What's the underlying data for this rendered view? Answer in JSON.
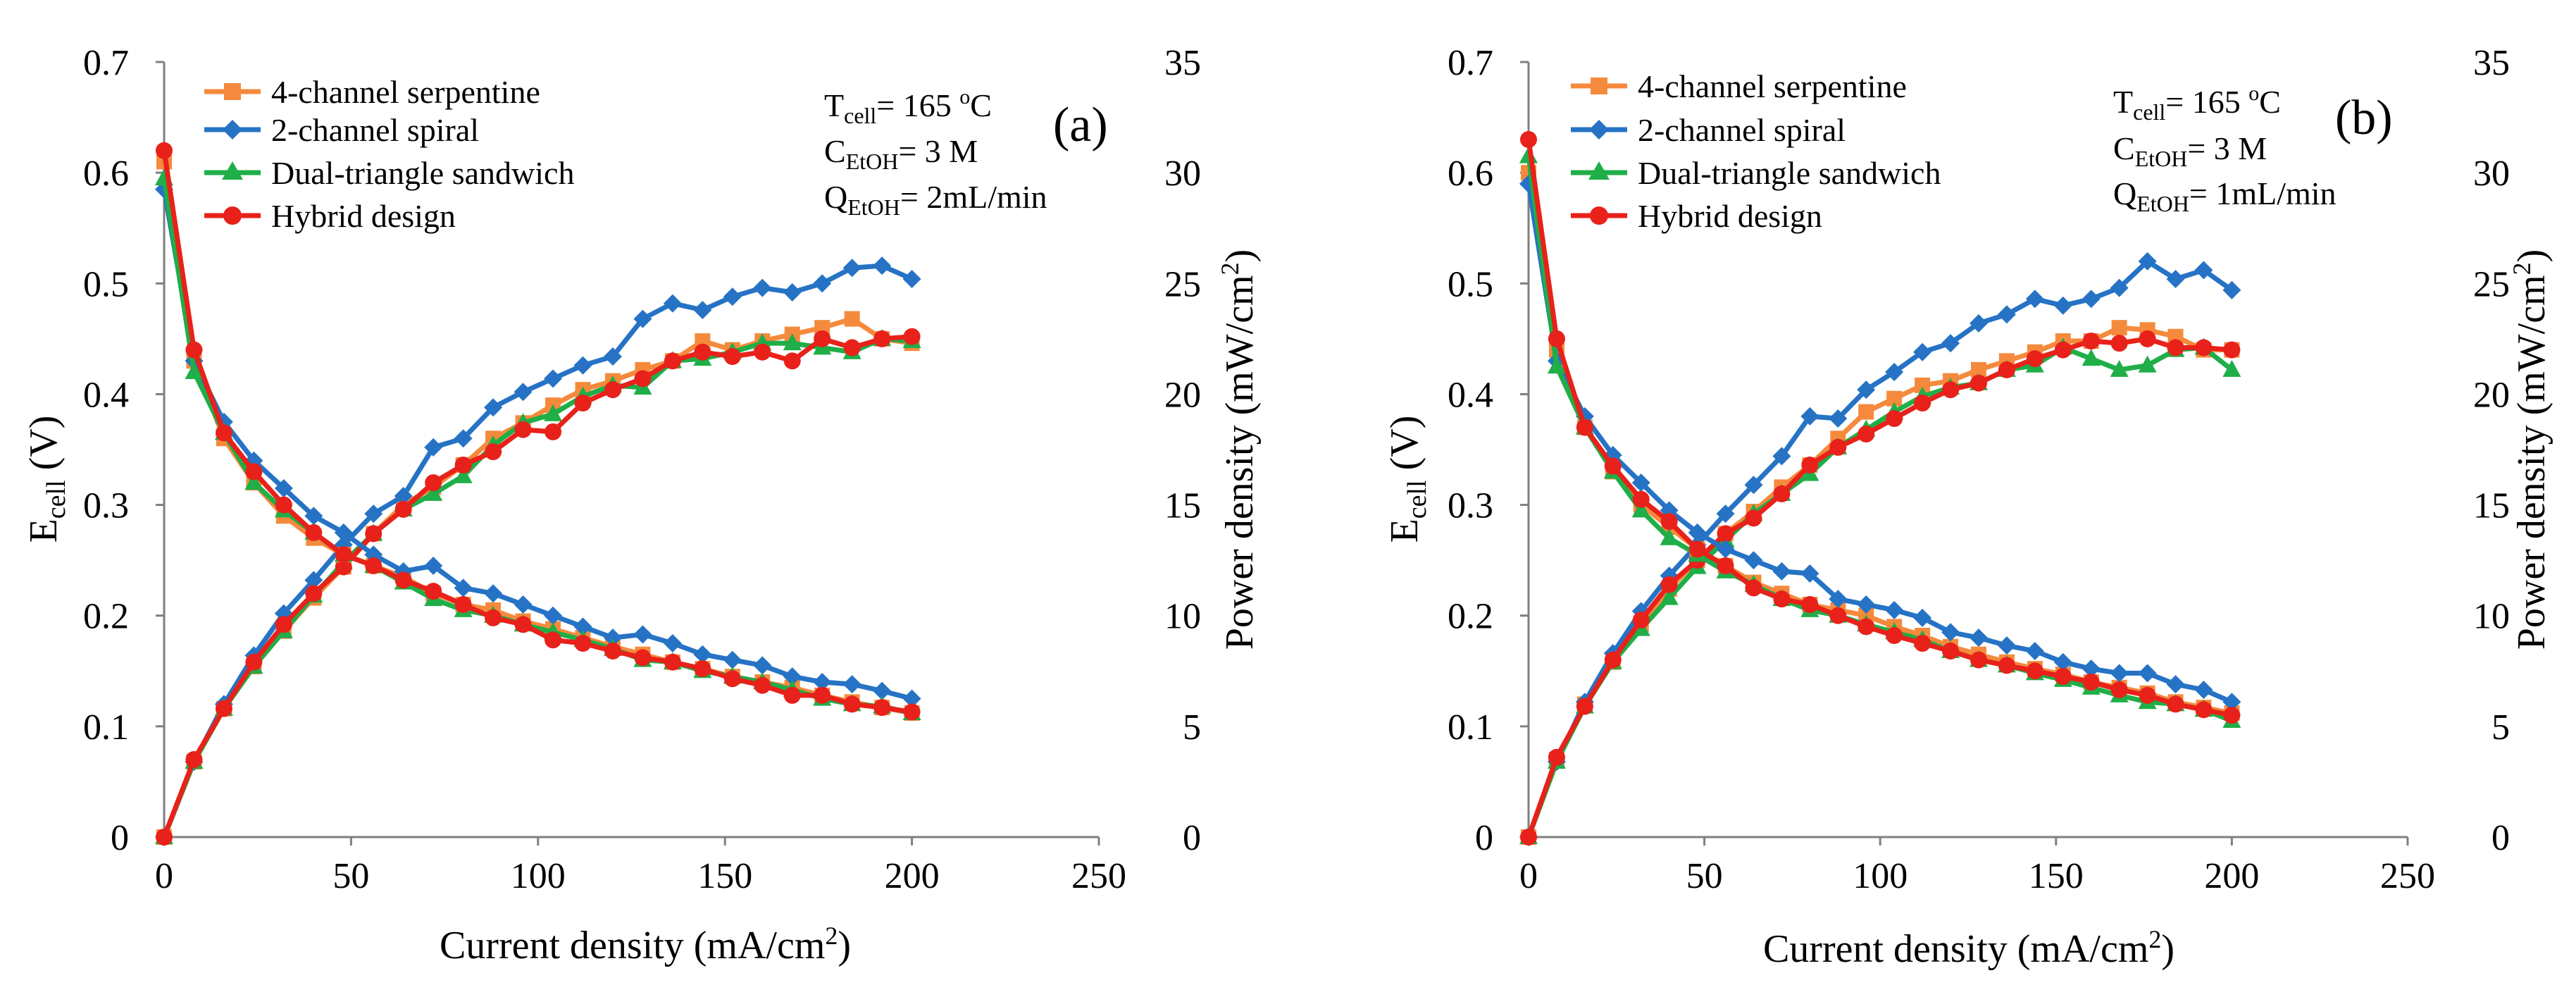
{
  "chart_data": [
    {
      "type": "line",
      "panel": "(a)",
      "conditions": {
        "t_prefix": "T",
        "t_sub": "cell",
        "t_value": "= 165 ",
        "t_sup": "o",
        "t_unit": "C",
        "c_prefix": "C",
        "c_sub": "EtOH",
        "c_value": "= 3 M",
        "q_prefix": "Q",
        "q_sub": "EtOH",
        "q_value": "= 2mL/min"
      },
      "xlabel_main": "Current density (mA/cm",
      "xlabel_sup": "2",
      "xlabel_close": ")",
      "ylabel_main": "E",
      "ylabel_sub": "cell",
      "ylabel_tail": " (V)",
      "y2label_main": "Power density (mW/cm",
      "y2label_sup": "2",
      "y2label_close": ")",
      "xlim": [
        0,
        250
      ],
      "xticks": [
        0,
        50,
        100,
        150,
        200,
        250
      ],
      "ylim": [
        0,
        0.7
      ],
      "yticks": [
        "0",
        "0.1",
        "0.2",
        "0.3",
        "0.4",
        "0.5",
        "0.6",
        "0.7"
      ],
      "y2lim": [
        0,
        35
      ],
      "y2ticks": [
        "0",
        "5",
        "10",
        "15",
        "20",
        "25",
        "30",
        "35"
      ],
      "x": [
        0,
        8,
        16,
        24,
        32,
        40,
        48,
        56,
        64,
        72,
        80,
        88,
        96,
        104,
        112,
        120,
        128,
        136,
        144,
        152,
        160,
        168,
        176,
        184,
        192,
        200
      ],
      "series": [
        {
          "name": "4-channel serpentine",
          "color": "#f58a3c",
          "marker": "square",
          "voltage": [
            0.61,
            0.43,
            0.36,
            0.32,
            0.29,
            0.27,
            0.255,
            0.245,
            0.235,
            0.22,
            0.21,
            0.205,
            0.195,
            0.188,
            0.18,
            0.172,
            0.165,
            0.158,
            0.152,
            0.145,
            0.14,
            0.135,
            0.128,
            0.122,
            0.117,
            0.112
          ],
          "power": [
            0,
            3.4,
            5.8,
            7.7,
            9.3,
            10.8,
            12.2,
            13.7,
            15.0,
            15.8,
            16.8,
            18.0,
            18.7,
            19.5,
            20.2,
            20.6,
            21.1,
            21.5,
            22.4,
            22.0,
            22.4,
            22.7,
            23.0,
            23.4,
            22.5,
            22.3
          ]
        },
        {
          "name": "2-channel spiral",
          "color": "#2673c5",
          "marker": "diamond",
          "voltage": [
            0.585,
            0.43,
            0.375,
            0.34,
            0.315,
            0.29,
            0.275,
            0.255,
            0.24,
            0.245,
            0.225,
            0.22,
            0.21,
            0.2,
            0.19,
            0.18,
            0.183,
            0.175,
            0.165,
            0.16,
            0.155,
            0.145,
            0.14,
            0.138,
            0.132,
            0.125
          ],
          "power": [
            0,
            3.4,
            6.0,
            8.2,
            10.1,
            11.6,
            13.2,
            14.6,
            15.4,
            17.6,
            18.0,
            19.4,
            20.1,
            20.7,
            21.3,
            21.7,
            23.4,
            24.1,
            23.8,
            24.4,
            24.8,
            24.6,
            25.0,
            25.7,
            25.8,
            25.2
          ]
        },
        {
          "name": "Dual-triangle sandwich",
          "color": "#1fae47",
          "marker": "triangle",
          "voltage": [
            0.595,
            0.42,
            0.365,
            0.32,
            0.295,
            0.275,
            0.255,
            0.245,
            0.23,
            0.215,
            0.205,
            0.2,
            0.192,
            0.185,
            0.178,
            0.17,
            0.16,
            0.158,
            0.15,
            0.145,
            0.14,
            0.133,
            0.125,
            0.12,
            0.118,
            0.112
          ],
          "power": [
            0,
            3.4,
            5.8,
            7.7,
            9.3,
            10.9,
            12.4,
            13.7,
            14.8,
            15.5,
            16.3,
            17.7,
            18.7,
            19.1,
            19.9,
            20.4,
            20.3,
            21.5,
            21.6,
            21.9,
            22.3,
            22.3,
            22.1,
            21.9,
            22.5,
            22.4
          ]
        },
        {
          "name": "Hybrid design",
          "color": "#e8211a",
          "marker": "circle",
          "voltage": [
            0.62,
            0.44,
            0.365,
            0.33,
            0.3,
            0.275,
            0.255,
            0.245,
            0.232,
            0.222,
            0.21,
            0.198,
            0.192,
            0.178,
            0.175,
            0.168,
            0.162,
            0.158,
            0.152,
            0.143,
            0.137,
            0.128,
            0.128,
            0.12,
            0.117,
            0.113
          ],
          "power": [
            0,
            3.5,
            5.8,
            7.9,
            9.6,
            11.0,
            12.2,
            13.7,
            14.8,
            16.0,
            16.8,
            17.4,
            18.4,
            18.3,
            19.6,
            20.2,
            20.7,
            21.5,
            21.9,
            21.7,
            21.9,
            21.5,
            22.5,
            22.1,
            22.5,
            22.6
          ]
        }
      ]
    },
    {
      "type": "line",
      "panel": "(b)",
      "conditions": {
        "t_prefix": "T",
        "t_sub": "cell",
        "t_value": "= 165 ",
        "t_sup": "o",
        "t_unit": "C",
        "c_prefix": "C",
        "c_sub": "EtOH",
        "c_value": "= 3 M",
        "q_prefix": "Q",
        "q_sub": "EtOH",
        "q_value": "= 1mL/min"
      },
      "xlabel_main": "Current density (mA/cm",
      "xlabel_sup": "2",
      "xlabel_close": ")",
      "ylabel_main": "E",
      "ylabel_sub": "cell",
      "ylabel_tail": " (V)",
      "y2label_main": "Power density (mW/cm",
      "y2label_sup": "2",
      "y2label_close": ")",
      "xlim": [
        0,
        250
      ],
      "xticks": [
        0,
        50,
        100,
        150,
        200,
        250
      ],
      "ylim": [
        0,
        0.7
      ],
      "yticks": [
        "0",
        "0.1",
        "0.2",
        "0.3",
        "0.4",
        "0.5",
        "0.6",
        "0.7"
      ],
      "y2lim": [
        0,
        35
      ],
      "y2ticks": [
        "0",
        "5",
        "10",
        "15",
        "20",
        "25",
        "30",
        "35"
      ],
      "x": [
        0,
        8,
        16,
        24,
        32,
        40,
        48,
        56,
        64,
        72,
        80,
        88,
        96,
        104,
        112,
        120,
        128,
        136,
        144,
        152,
        160,
        168,
        176,
        184,
        192,
        200
      ],
      "series": [
        {
          "name": "4-channel serpentine",
          "color": "#f58a3c",
          "marker": "square",
          "voltage": [
            0.6,
            0.44,
            0.37,
            0.33,
            0.3,
            0.28,
            0.26,
            0.245,
            0.23,
            0.22,
            0.21,
            0.205,
            0.2,
            0.19,
            0.182,
            0.172,
            0.165,
            0.158,
            0.152,
            0.147,
            0.14,
            0.135,
            0.13,
            0.122,
            0.117,
            0.112
          ],
          "power": [
            0,
            3.5,
            6.0,
            7.9,
            9.6,
            11.2,
            12.5,
            13.7,
            14.7,
            15.8,
            16.8,
            18.0,
            19.2,
            19.8,
            20.4,
            20.6,
            21.1,
            21.5,
            21.9,
            22.4,
            22.4,
            23.0,
            22.9,
            22.6,
            22.0,
            22.0
          ]
        },
        {
          "name": "2-channel spiral",
          "color": "#2673c5",
          "marker": "diamond",
          "voltage": [
            0.59,
            0.43,
            0.38,
            0.345,
            0.32,
            0.295,
            0.275,
            0.26,
            0.25,
            0.24,
            0.238,
            0.215,
            0.21,
            0.205,
            0.198,
            0.185,
            0.18,
            0.173,
            0.168,
            0.158,
            0.152,
            0.148,
            0.148,
            0.138,
            0.133,
            0.122
          ],
          "power": [
            0,
            3.4,
            6.1,
            8.3,
            10.2,
            11.8,
            13.2,
            14.6,
            15.9,
            17.2,
            19.0,
            18.9,
            20.2,
            21.0,
            21.9,
            22.3,
            23.2,
            23.6,
            24.3,
            24.0,
            24.3,
            24.8,
            26.0,
            25.2,
            25.6,
            24.7
          ]
        },
        {
          "name": "Dual-triangle sandwich",
          "color": "#1fae47",
          "marker": "triangle",
          "voltage": [
            0.615,
            0.425,
            0.37,
            0.33,
            0.295,
            0.27,
            0.255,
            0.24,
            0.228,
            0.215,
            0.205,
            0.2,
            0.192,
            0.185,
            0.178,
            0.168,
            0.16,
            0.155,
            0.148,
            0.142,
            0.135,
            0.128,
            0.122,
            0.12,
            0.115,
            0.105
          ],
          "power": [
            0,
            3.4,
            5.9,
            7.9,
            9.4,
            10.8,
            12.2,
            13.4,
            14.6,
            15.5,
            16.4,
            17.6,
            18.4,
            19.2,
            19.9,
            20.3,
            20.5,
            21.1,
            21.3,
            22.1,
            21.6,
            21.1,
            21.3,
            22.0,
            22.1,
            21.1
          ]
        },
        {
          "name": "Hybrid design",
          "color": "#e8211a",
          "marker": "circle",
          "voltage": [
            0.63,
            0.45,
            0.37,
            0.335,
            0.305,
            0.285,
            0.26,
            0.245,
            0.225,
            0.215,
            0.21,
            0.2,
            0.19,
            0.182,
            0.175,
            0.168,
            0.16,
            0.155,
            0.15,
            0.145,
            0.14,
            0.133,
            0.128,
            0.12,
            0.115,
            0.11
          ],
          "power": [
            0,
            3.6,
            5.9,
            8.0,
            9.8,
            11.4,
            12.5,
            13.7,
            14.4,
            15.5,
            16.8,
            17.6,
            18.2,
            18.9,
            19.6,
            20.2,
            20.5,
            21.1,
            21.6,
            22.0,
            22.4,
            22.3,
            22.5,
            22.1,
            22.1,
            22.0
          ]
        }
      ]
    }
  ]
}
